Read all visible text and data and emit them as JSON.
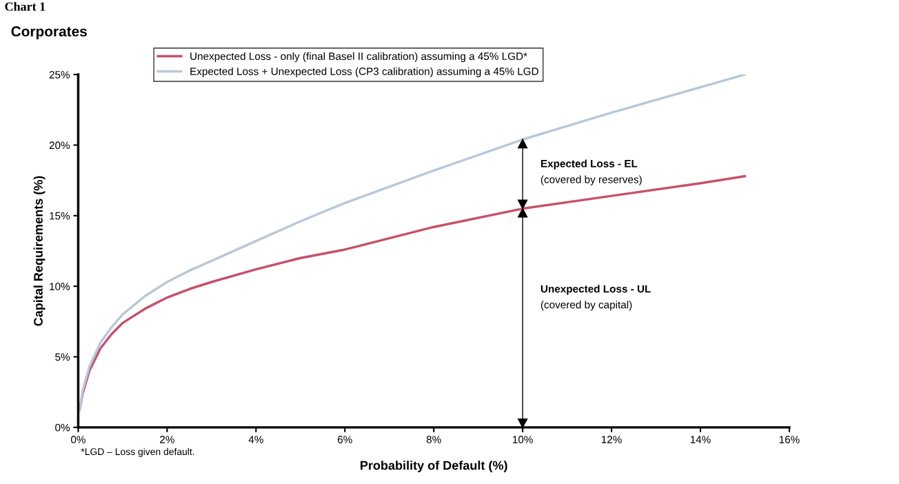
{
  "chart_data": {
    "type": "line",
    "title": "Corporates",
    "subtitle": "Chart 1",
    "xlabel": "Probability of Default (%)",
    "ylabel": "Capital Requirements (%)",
    "x": [
      0.03,
      0.1,
      0.25,
      0.5,
      0.75,
      1,
      1.5,
      2,
      2.5,
      3,
      4,
      5,
      6,
      8,
      10,
      12,
      14,
      15
    ],
    "series": [
      {
        "name": "Unexpected Loss - only (final Basel II calibration) assuming a 45% LGD*",
        "color": "#c8506a",
        "values": [
          1.2,
          2.4,
          4.0,
          5.6,
          6.6,
          7.4,
          8.4,
          9.2,
          9.8,
          10.3,
          11.2,
          12.0,
          12.6,
          14.2,
          15.5,
          16.4,
          17.3,
          17.8
        ]
      },
      {
        "name": "Expected Loss + Unexpected Loss (CP3 calibration) assuming a 45% LGD",
        "color": "#b8c8d8",
        "values": [
          1.2,
          2.6,
          4.3,
          6.0,
          7.1,
          8.0,
          9.3,
          10.3,
          11.1,
          11.8,
          13.2,
          14.6,
          15.9,
          18.2,
          20.4,
          22.3,
          24.1,
          25.0
        ]
      }
    ],
    "xlim": [
      0,
      16
    ],
    "xticks": [
      {
        "value": 0,
        "label": "0%"
      },
      {
        "value": 2,
        "label": "2%"
      },
      {
        "value": 4,
        "label": "4%"
      },
      {
        "value": 6,
        "label": "6%"
      },
      {
        "value": 8,
        "label": "8%"
      },
      {
        "value": 10,
        "label": "10%"
      },
      {
        "value": 12,
        "label": "12%"
      },
      {
        "value": 14,
        "label": "14%"
      },
      {
        "value": 16,
        "label": "16%"
      }
    ],
    "ylim": [
      0,
      25
    ],
    "yticks": [
      {
        "value": 0,
        "label": "0%"
      },
      {
        "value": 5,
        "label": "5%"
      },
      {
        "value": 10,
        "label": "10%"
      },
      {
        "value": 15,
        "label": "15%"
      },
      {
        "value": 20,
        "label": "20%"
      },
      {
        "value": 25,
        "label": "25%"
      }
    ],
    "annotations": [
      "Expected Loss - EL",
      "(covered by reserves)",
      "Unexpected Loss - UL",
      "(covered by capital)",
      "*LGD – Loss given default."
    ],
    "ref_lines": [
      {
        "axis": "x",
        "value": 10
      }
    ],
    "legend": "top",
    "grid": false,
    "marker": "none",
    "line_style": "solid"
  }
}
